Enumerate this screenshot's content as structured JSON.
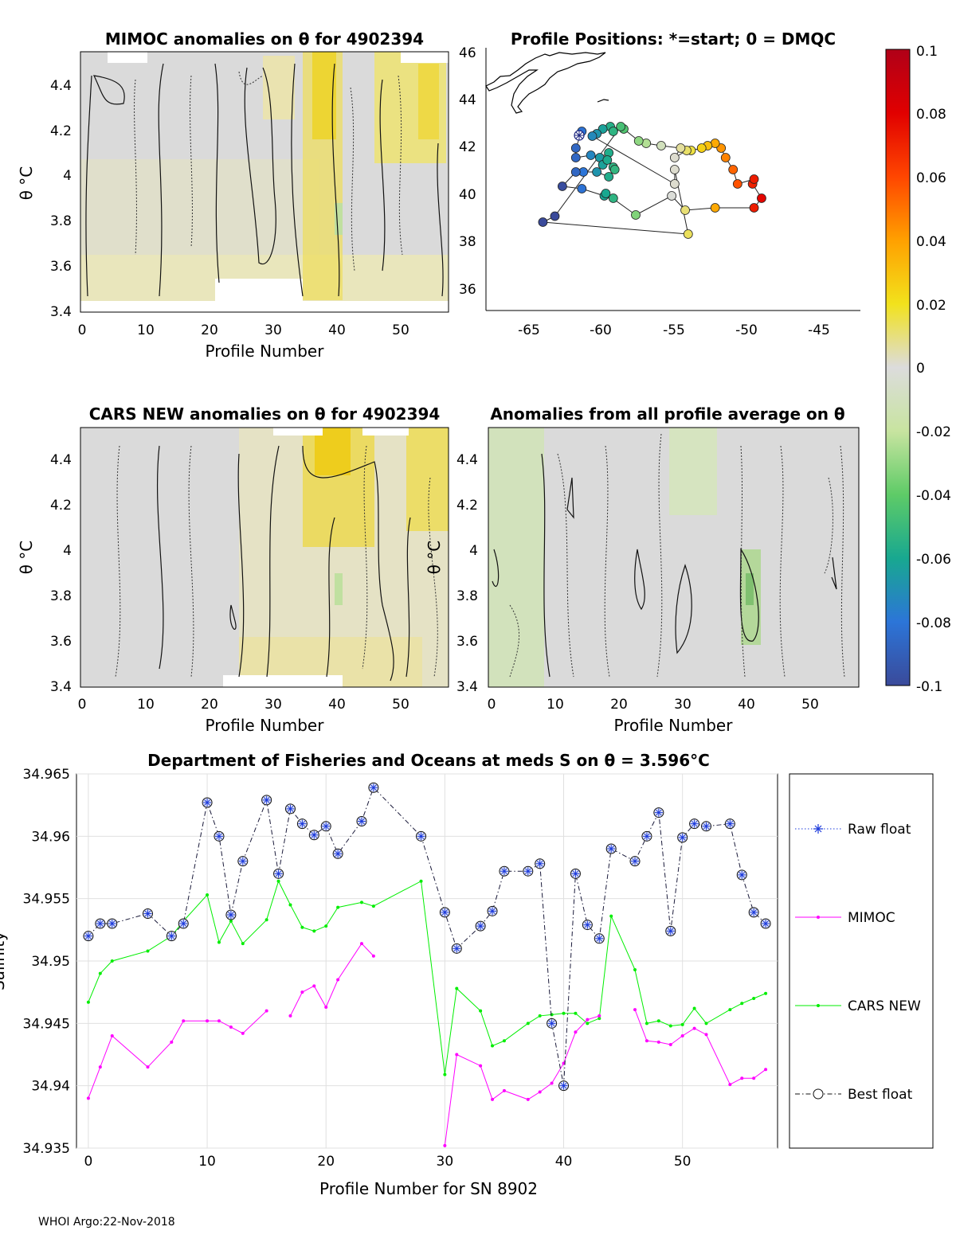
{
  "footer": "WHOI Argo:22-Nov-2018",
  "panels": {
    "mimoc": {
      "title": "MIMOC anomalies on θ  for 4902394",
      "xlabel": "Profile Number",
      "ylabel": "θ °C",
      "xticks": [
        "0",
        "10",
        "20",
        "30",
        "40",
        "50"
      ],
      "yticks": [
        "3.4",
        "3.6",
        "3.8",
        "4",
        "4.2",
        "4.4"
      ]
    },
    "positions": {
      "title": "Profile Positions: *=start; 0 = DMQC",
      "xticks": [
        "-65",
        "-60",
        "-55",
        "-50",
        "-45"
      ],
      "yticks": [
        "36",
        "38",
        "40",
        "42",
        "44",
        "46"
      ]
    },
    "cars": {
      "title": "CARS NEW anomalies on θ for 4902394",
      "xlabel": "Profile Number",
      "ylabel": "θ °C",
      "xticks": [
        "0",
        "10",
        "20",
        "30",
        "40",
        "50"
      ],
      "yticks": [
        "3.4",
        "3.6",
        "3.8",
        "4",
        "4.2",
        "4.4"
      ]
    },
    "average": {
      "title": "Anomalies from all profile average on θ",
      "xlabel": "Profile Number",
      "ylabel": "θ °C",
      "xticks": [
        "0",
        "10",
        "20",
        "30",
        "40",
        "50"
      ],
      "yticks": [
        "3.4",
        "3.6",
        "3.8",
        "4",
        "4.2",
        "4.4"
      ]
    },
    "colorbar": {
      "ticks": [
        "0.1",
        "0.08",
        "0.06",
        "0.04",
        "0.02",
        "0",
        "-0.02",
        "-0.04",
        "-0.06",
        "-0.08",
        "-0.1"
      ]
    }
  },
  "chart_data": [
    {
      "type": "heatmap",
      "title": "MIMOC anomalies on θ  for 4902394",
      "xlabel": "Profile Number",
      "ylabel": "θ °C",
      "xlim": [
        0,
        57
      ],
      "ylim": [
        3.4,
        4.55
      ],
      "clim": [
        -0.1,
        0.1
      ]
    },
    {
      "type": "scatter",
      "title": "Profile Positions: *=start; 0 = DMQC",
      "xlim": [
        -68,
        -43
      ],
      "ylim": [
        35,
        46
      ],
      "positions": [
        [
          -61.6,
          42.5
        ],
        [
          -62.0,
          41.8
        ],
        [
          -62.0,
          41.4
        ],
        [
          -61.0,
          41.5
        ],
        [
          -60.4,
          41.4
        ],
        [
          -59.8,
          41.6
        ],
        [
          -60.2,
          41.1
        ],
        [
          -59.9,
          41.3
        ],
        [
          -59.5,
          41.0
        ],
        [
          -59.4,
          40.9
        ],
        [
          -59.8,
          40.6
        ],
        [
          -60.6,
          40.8
        ],
        [
          -61.5,
          40.8
        ],
        [
          -62.0,
          40.8
        ],
        [
          -62.9,
          40.2
        ],
        [
          -61.6,
          40.1
        ],
        [
          -60.1,
          39.8
        ],
        [
          -59.5,
          39.7
        ],
        [
          -60.0,
          39.9
        ],
        [
          -58.0,
          39.0
        ],
        [
          -55.6,
          39.8
        ],
        [
          -54.7,
          39.2
        ],
        [
          -52.7,
          39.3
        ],
        [
          -50.1,
          39.3
        ],
        [
          -49.6,
          39.7
        ],
        [
          -50.2,
          40.3
        ],
        [
          -50.1,
          40.5
        ],
        [
          -51.2,
          40.3
        ],
        [
          -51.5,
          40.9
        ],
        [
          -52.0,
          41.4
        ],
        [
          -52.3,
          41.8
        ],
        [
          -52.7,
          42.0
        ],
        [
          -53.2,
          41.9
        ],
        [
          -53.6,
          41.8
        ],
        [
          -54.3,
          41.7
        ],
        [
          -54.6,
          41.7
        ],
        [
          -55.4,
          41.4
        ],
        [
          -55.0,
          41.8
        ],
        [
          -56.3,
          41.9
        ],
        [
          -57.3,
          42.0
        ],
        [
          -57.8,
          42.1
        ],
        [
          -58.8,
          42.6
        ],
        [
          -59.7,
          42.7
        ],
        [
          -60.2,
          42.6
        ],
        [
          -60.6,
          42.4
        ],
        [
          -60.9,
          42.3
        ],
        [
          -55.4,
          40.3
        ],
        [
          -55.4,
          40.9
        ],
        [
          -54.5,
          38.2
        ],
        [
          -64.2,
          38.7
        ],
        [
          -63.4,
          38.95
        ],
        [
          -59.0,
          42.7
        ],
        [
          -59.5,
          42.5
        ]
      ]
    },
    {
      "type": "heatmap",
      "title": "CARS NEW anomalies on θ for 4902394",
      "xlabel": "Profile Number",
      "ylabel": "θ °C",
      "xlim": [
        0,
        57
      ],
      "ylim": [
        3.4,
        4.55
      ],
      "clim": [
        -0.1,
        0.1
      ]
    },
    {
      "type": "heatmap",
      "title": "Anomalies from all profile average on θ",
      "xlabel": "Profile Number",
      "ylabel": "θ °C",
      "xlim": [
        0,
        57
      ],
      "ylim": [
        3.4,
        4.55
      ],
      "clim": [
        -0.1,
        0.1
      ]
    },
    {
      "type": "line",
      "title": "Department of Fisheries and Oceans at meds S on θ = 3.596°C",
      "xlabel": "Profile Number for SN 8902",
      "ylabel": "Salinity",
      "xlim": [
        -1,
        58
      ],
      "ylim": [
        34.935,
        34.965
      ],
      "xticks": [
        "0",
        "10",
        "20",
        "30",
        "40",
        "50"
      ],
      "yticks": [
        "34.935",
        "34.94",
        "34.945",
        "34.95",
        "34.955",
        "34.96",
        "34.965"
      ],
      "legend": [
        "Raw float",
        "MIMOC",
        "CARS NEW",
        "Best float"
      ],
      "series": [
        {
          "name": "Best float",
          "color": "#1a1a1a",
          "x": [
            0,
            1,
            2,
            5,
            7,
            8,
            10,
            11,
            12,
            13,
            15,
            16,
            17,
            18,
            19,
            20,
            21,
            23,
            24,
            28,
            30,
            31,
            33,
            34,
            35,
            37,
            38,
            39,
            40,
            41,
            42,
            43,
            44,
            46,
            47,
            48,
            49,
            50,
            51,
            52,
            54,
            55,
            56,
            57
          ],
          "values": [
            34.952,
            34.953,
            34.953,
            34.9538,
            34.952,
            34.953,
            34.9627,
            34.96,
            34.9537,
            34.958,
            34.9629,
            34.957,
            34.9622,
            34.961,
            34.9601,
            34.9608,
            34.9586,
            34.9612,
            34.9639,
            34.96,
            34.9539,
            34.951,
            34.9528,
            34.954,
            34.9572,
            34.9572,
            34.9578,
            34.945,
            34.94,
            34.957,
            34.9529,
            34.9518,
            34.959,
            34.958,
            34.96,
            34.9619,
            34.9524,
            34.9599,
            34.961,
            34.9608,
            34.961,
            34.9569,
            34.9539,
            34.953
          ]
        },
        {
          "name": "MIMOC",
          "color": "#ff00ff",
          "segments": [
            {
              "x": [
                0,
                1,
                2,
                5,
                7,
                8,
                10,
                11,
                12,
                13,
                15
              ],
              "values": [
                34.939,
                34.9415,
                34.944,
                34.9415,
                34.9435,
                34.9452,
                34.9452,
                34.9452,
                34.9447,
                34.9442,
                34.946
              ]
            },
            {
              "x": [
                17,
                18,
                19,
                20,
                21,
                23,
                24
              ],
              "values": [
                34.9456,
                34.9475,
                34.948,
                34.9463,
                34.9485,
                34.9514,
                34.9504
              ]
            },
            {
              "x": [
                30,
                31,
                33,
                34,
                35,
                37,
                38,
                39,
                40,
                41,
                42,
                43
              ],
              "values": [
                34.9352,
                34.9425,
                34.9416,
                34.9389,
                34.9396,
                34.9389,
                34.9395,
                34.9402,
                34.9418,
                34.9443,
                34.9453,
                34.9456
              ]
            },
            {
              "x": [
                46,
                47,
                48,
                49,
                50,
                51,
                52,
                54,
                55,
                56,
                57
              ],
              "values": [
                34.9461,
                34.9436,
                34.9435,
                34.9433,
                34.944,
                34.9446,
                34.9441,
                34.9401,
                34.9406,
                34.9406,
                34.9413
              ]
            }
          ]
        },
        {
          "name": "CARS NEW",
          "color": "#00ee00",
          "x": [
            0,
            1,
            2,
            5,
            7,
            8,
            10,
            11,
            12,
            13,
            15,
            16,
            17,
            18,
            19,
            20,
            21,
            23,
            24,
            28,
            30,
            31,
            33,
            34,
            35,
            37,
            38,
            39,
            40,
            41,
            42,
            43,
            44,
            46,
            47,
            48,
            49,
            50,
            51,
            52,
            54,
            55,
            56,
            57
          ],
          "values": [
            34.9467,
            34.949,
            34.95,
            34.9508,
            34.952,
            34.9532,
            34.9553,
            34.9515,
            34.9532,
            34.9514,
            34.9533,
            34.9564,
            34.9545,
            34.9527,
            34.9524,
            34.9528,
            34.9543,
            34.9547,
            34.9544,
            34.9564,
            34.9409,
            34.9478,
            34.946,
            34.9432,
            34.9436,
            34.945,
            34.9456,
            34.9457,
            34.9458,
            34.9458,
            34.945,
            34.9454,
            34.9536,
            34.9493,
            34.945,
            34.9452,
            34.9448,
            34.9449,
            34.9462,
            34.945,
            34.9461,
            34.9466,
            34.947,
            34.9474
          ]
        }
      ]
    }
  ]
}
